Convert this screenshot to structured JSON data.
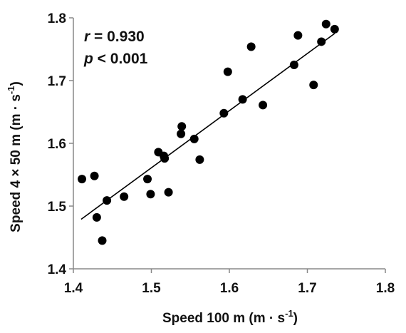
{
  "chart_data": {
    "type": "scatter",
    "xlabel": {
      "prefix": "Speed 100 m (m · s",
      "sup": "-1",
      "suffix": ")"
    },
    "ylabel": {
      "prefix": "Speed 4 × 50 m (m · s",
      "sup": "-1",
      "suffix": ")"
    },
    "xlim": [
      1.4,
      1.8
    ],
    "ylim": [
      1.4,
      1.8
    ],
    "xticks": [
      "1.4",
      "1.5",
      "1.6",
      "1.7",
      "1.8"
    ],
    "yticks": [
      "1.4",
      "1.5",
      "1.6",
      "1.7",
      "1.8"
    ],
    "grid": false,
    "legend": "none",
    "annotations": {
      "r_symbol": "r",
      "r_text": " = 0.930",
      "p_symbol": "p",
      "p_text": " < 0.001"
    },
    "trendline": {
      "x": [
        1.41,
        1.735
      ],
      "y": [
        1.479,
        1.775
      ]
    },
    "points": [
      {
        "x": 1.411,
        "y": 1.543
      },
      {
        "x": 1.427,
        "y": 1.548
      },
      {
        "x": 1.43,
        "y": 1.482
      },
      {
        "x": 1.437,
        "y": 1.445
      },
      {
        "x": 1.443,
        "y": 1.509
      },
      {
        "x": 1.465,
        "y": 1.515
      },
      {
        "x": 1.495,
        "y": 1.543
      },
      {
        "x": 1.499,
        "y": 1.519
      },
      {
        "x": 1.509,
        "y": 1.586
      },
      {
        "x": 1.516,
        "y": 1.58
      },
      {
        "x": 1.517,
        "y": 1.576
      },
      {
        "x": 1.522,
        "y": 1.522
      },
      {
        "x": 1.538,
        "y": 1.615
      },
      {
        "x": 1.539,
        "y": 1.627
      },
      {
        "x": 1.555,
        "y": 1.607
      },
      {
        "x": 1.562,
        "y": 1.574
      },
      {
        "x": 1.593,
        "y": 1.648
      },
      {
        "x": 1.598,
        "y": 1.714
      },
      {
        "x": 1.617,
        "y": 1.67
      },
      {
        "x": 1.628,
        "y": 1.754
      },
      {
        "x": 1.643,
        "y": 1.661
      },
      {
        "x": 1.683,
        "y": 1.725
      },
      {
        "x": 1.688,
        "y": 1.772
      },
      {
        "x": 1.708,
        "y": 1.693
      },
      {
        "x": 1.718,
        "y": 1.762
      },
      {
        "x": 1.724,
        "y": 1.79
      },
      {
        "x": 1.735,
        "y": 1.782
      }
    ]
  },
  "colors": {
    "marker": "#000000",
    "axis": "#888888",
    "text": "#111111"
  }
}
